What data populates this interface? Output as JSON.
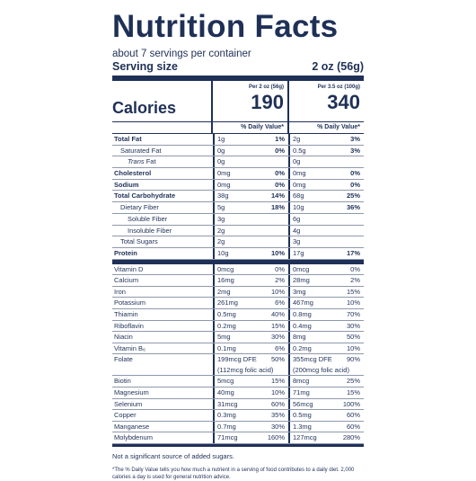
{
  "title": "Nutrition Facts",
  "servings_per_container": "about 7 servings per container",
  "serving_size_label": "Serving size",
  "serving_size_value": "2 oz (56g)",
  "calories_label": "Calories",
  "columns": [
    {
      "per": "Per 2 oz (56g)",
      "calories": "190",
      "dv_header": "% Daily Value*"
    },
    {
      "per": "Per 3.5 oz (100g)",
      "calories": "340",
      "dv_header": "% Daily Value*"
    }
  ],
  "nutrients": [
    {
      "name": "Total Fat",
      "a": "1g",
      "ap": "1%",
      "b": "2g",
      "bp": "3%"
    },
    {
      "name": "Saturated Fat",
      "a": "0g",
      "ap": "0%",
      "b": "0.5g",
      "bp": "3%"
    },
    {
      "name_italic": "Trans",
      "name_rest": " Fat",
      "a": "0g",
      "ap": "",
      "b": "0g",
      "bp": ""
    },
    {
      "name": "Cholesterol",
      "a": "0mg",
      "ap": "0%",
      "b": "0mg",
      "bp": "0%"
    },
    {
      "name": "Sodium",
      "a": "0mg",
      "ap": "0%",
      "b": "0mg",
      "bp": "0%"
    },
    {
      "name": "Total Carbohydrate",
      "a": "38g",
      "ap": "14%",
      "b": "68g",
      "bp": "25%"
    },
    {
      "name": "Dietary Fiber",
      "a": "5g",
      "ap": "18%",
      "b": "10g",
      "bp": "36%"
    },
    {
      "name": "Soluble Fiber",
      "a": "3g",
      "ap": "",
      "b": "6g",
      "bp": ""
    },
    {
      "name": "Insoluble Fiber",
      "a": "2g",
      "ap": "",
      "b": "4g",
      "bp": ""
    },
    {
      "name": "Total Sugars",
      "a": "2g",
      "ap": "",
      "b": "3g",
      "bp": ""
    },
    {
      "name": "Protein",
      "a": "10g",
      "ap": "10%",
      "b": "17g",
      "bp": "17%"
    }
  ],
  "vitamins": [
    {
      "name": "Vitamin D",
      "a": "0mcg",
      "ap": "0%",
      "b": "0mcg",
      "bp": "0%"
    },
    {
      "name": "Calcium",
      "a": "16mg",
      "ap": "2%",
      "b": "28mg",
      "bp": "2%"
    },
    {
      "name": "Iron",
      "a": "2mg",
      "ap": "10%",
      "b": "3mg",
      "bp": "15%"
    },
    {
      "name": "Potassium",
      "a": "261mg",
      "ap": "6%",
      "b": "467mg",
      "bp": "10%"
    },
    {
      "name": "Thiamin",
      "a": "0.5mg",
      "ap": "40%",
      "b": "0.8mg",
      "bp": "70%"
    },
    {
      "name": "Riboflavin",
      "a": "0.2mg",
      "ap": "15%",
      "b": "0.4mg",
      "bp": "30%"
    },
    {
      "name": "Niacin",
      "a": "5mg",
      "ap": "30%",
      "b": "8mg",
      "bp": "50%"
    },
    {
      "name": "Vitamin B₆",
      "a": "0.1mg",
      "ap": "6%",
      "b": "0.2mg",
      "bp": "10%"
    },
    {
      "name": "Folate",
      "a": "199mcg DFE",
      "ap": "50%",
      "a2": "(112mcg folic acid)",
      "b": "355mcg DFE",
      "bp": "90%",
      "b2": "(200mcg folic acid)"
    },
    {
      "name": "Biotin",
      "a": "5mcg",
      "ap": "15%",
      "b": "8mcg",
      "bp": "25%"
    },
    {
      "name": "Magnesium",
      "a": "40mg",
      "ap": "10%",
      "b": "71mg",
      "bp": "15%"
    },
    {
      "name": "Selenium",
      "a": "31mcg",
      "ap": "60%",
      "b": "56mcg",
      "bp": "100%"
    },
    {
      "name": "Copper",
      "a": "0.3mg",
      "ap": "35%",
      "b": "0.5mg",
      "bp": "60%"
    },
    {
      "name": "Manganese",
      "a": "0.7mg",
      "ap": "30%",
      "b": "1.3mg",
      "bp": "60%"
    },
    {
      "name": "Molybdenum",
      "a": "71mcg",
      "ap": "160%",
      "b": "127mcg",
      "bp": "280%"
    }
  ],
  "added_sugars_note": "Not a significant source of added sugars.",
  "footnote": "*The % Daily Value tells you how much a nutrient in a serving of food contributes to a daily diet. 2,000 calories a day is used for general nutrition advice."
}
